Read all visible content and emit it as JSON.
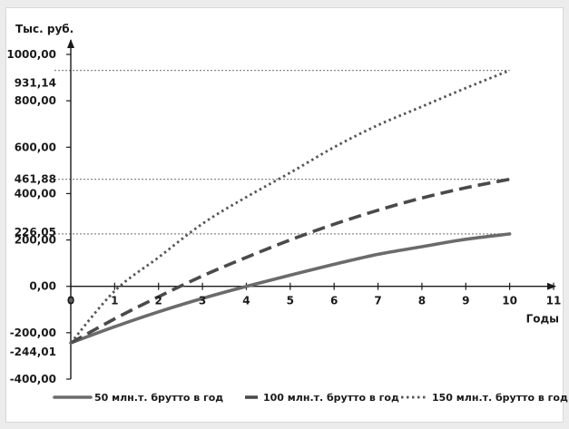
{
  "chart_data": {
    "type": "line",
    "ylabel": "Тыс. руб.",
    "xlabel": "Годы",
    "xlim": [
      0,
      11
    ],
    "ylim": [
      -400,
      1000
    ],
    "x_ticks": [
      0,
      1,
      2,
      3,
      4,
      5,
      6,
      7,
      8,
      9,
      10,
      11
    ],
    "y_ticks": [
      {
        "value": 1000,
        "label": "1000,00"
      },
      {
        "value": 800,
        "label": "800,00"
      },
      {
        "value": 600,
        "label": "600,00"
      },
      {
        "value": 400,
        "label": "400,00"
      },
      {
        "value": 200,
        "label": "200,00"
      },
      {
        "value": 0,
        "label": "0,00"
      },
      {
        "value": -200,
        "label": "-200,00"
      },
      {
        "value": -400,
        "label": "-400,00"
      }
    ],
    "annotations": [
      {
        "value": 931.14,
        "label": "931,14"
      },
      {
        "value": 461.88,
        "label": "461,88"
      },
      {
        "value": 226.05,
        "label": "226,05"
      },
      {
        "value": -244.01,
        "label": "-244,01"
      }
    ],
    "series": [
      {
        "name": "50 млн.т. брутто в год",
        "style": "solid",
        "color": "#6b6b6b",
        "x": [
          0,
          1,
          2,
          3,
          4,
          5,
          6,
          7,
          8,
          9,
          10
        ],
        "values": [
          -244.01,
          -174,
          -110,
          -52,
          0,
          48,
          95,
          138,
          171,
          203,
          226.05
        ]
      },
      {
        "name": "100 млн.т. брутто в год",
        "style": "dashed",
        "color": "#4a4a4a",
        "x": [
          0,
          1,
          2,
          3,
          4,
          5,
          6,
          7,
          8,
          9,
          10
        ],
        "values": [
          -244.01,
          -140,
          -45,
          45,
          125,
          200,
          268,
          328,
          381,
          425,
          461.88
        ]
      },
      {
        "name": "150 млн.т. брутто в год",
        "style": "dotted",
        "color": "#555555",
        "x": [
          0,
          1,
          2,
          3,
          4,
          5,
          6,
          7,
          8,
          9,
          10
        ],
        "values": [
          -244.01,
          -20,
          125,
          270,
          385,
          490,
          600,
          695,
          775,
          855,
          931.14
        ]
      }
    ],
    "legend_position": "bottom",
    "grid": false
  }
}
